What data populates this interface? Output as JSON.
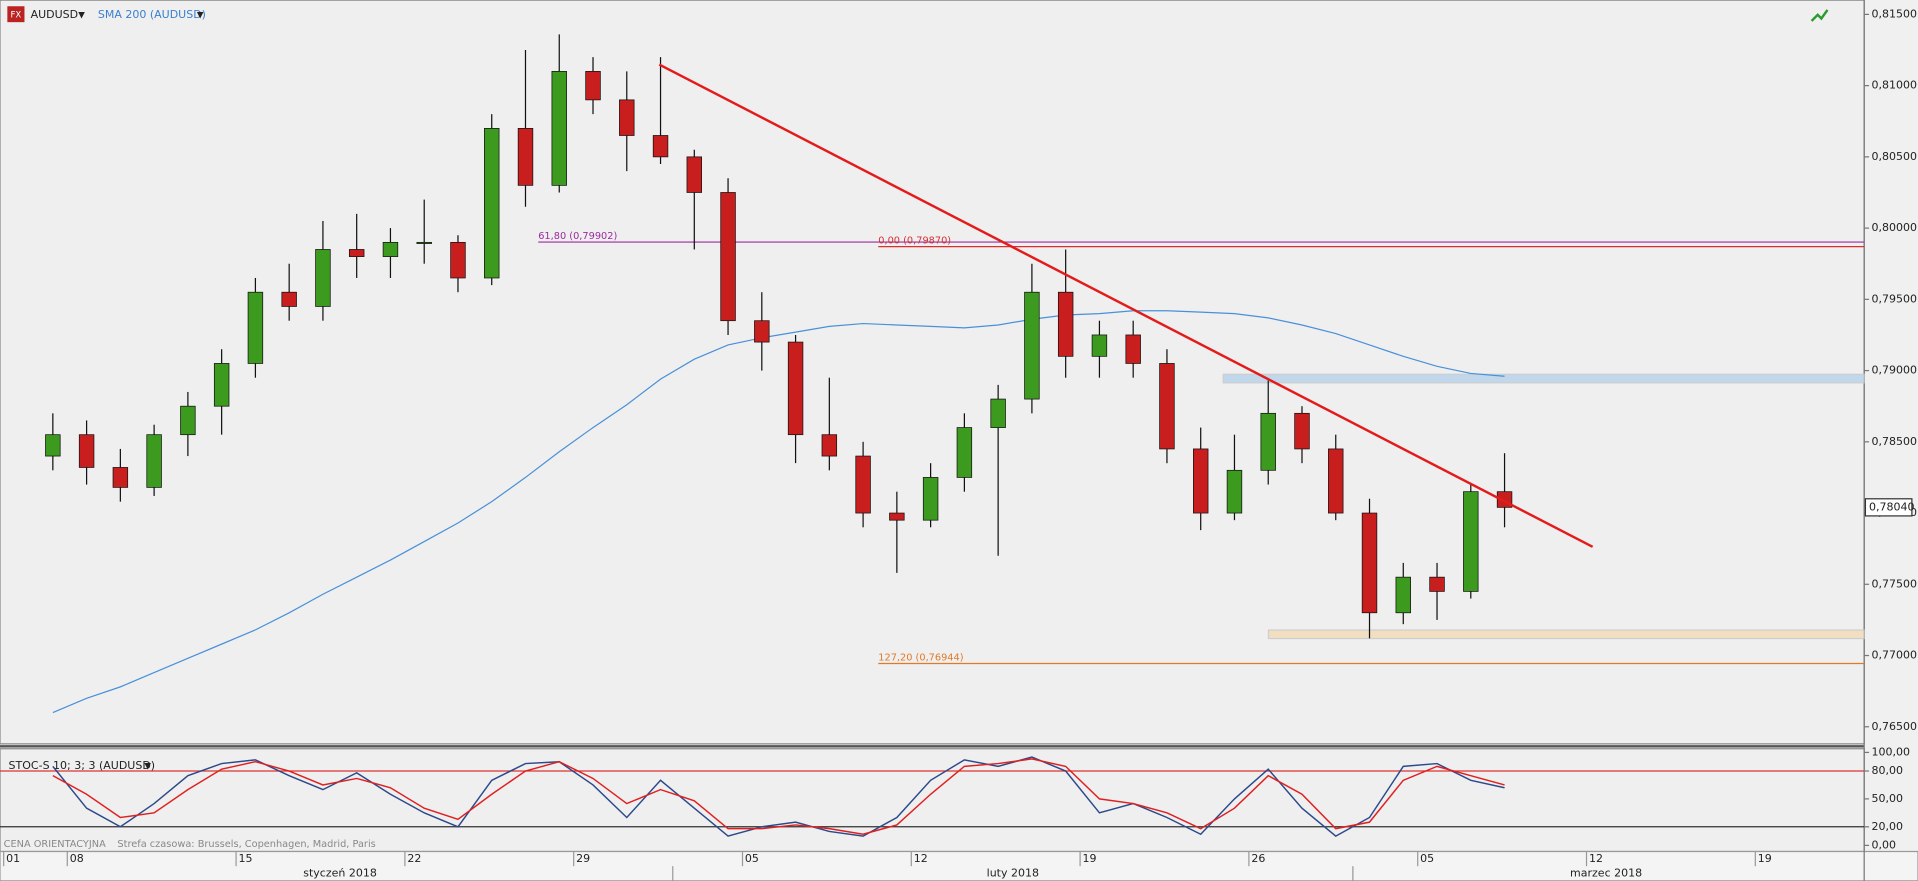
{
  "header": {
    "symbol": "AUDUSD",
    "indicator": "SMA 200 (AUDUSD)",
    "oscillator": "STOC-S 10; 3; 3 (AUDUSD)",
    "note": "CENA ORIENTACYJNA",
    "timezone": "Strefa czasowa: Brussels, Copenhagen, Madrid, Paris"
  },
  "chart_data": [
    {
      "type": "candlestick",
      "open": [
        0.784,
        0.7855,
        0.7832,
        0.7818,
        0.7855,
        0.7875,
        0.7905,
        0.7955,
        0.7945,
        0.7985,
        0.798,
        0.799,
        0.799,
        0.7965,
        0.807,
        0.803,
        0.811,
        0.809,
        0.8065,
        0.805,
        0.8025,
        0.7935,
        0.792,
        0.7855,
        0.784,
        0.78,
        0.7795,
        0.7825,
        0.786,
        0.788,
        0.7955,
        0.791,
        0.7925,
        0.7905,
        0.7845,
        0.78,
        0.783,
        0.787,
        0.7845,
        0.78,
        0.773,
        0.7755,
        0.7745,
        0.7815
      ],
      "high": [
        0.787,
        0.7865,
        0.7845,
        0.7862,
        0.7885,
        0.7915,
        0.7965,
        0.7975,
        0.8005,
        0.801,
        0.8,
        0.802,
        0.7995,
        0.808,
        0.8125,
        0.8136,
        0.812,
        0.811,
        0.812,
        0.8055,
        0.8035,
        0.7955,
        0.7925,
        0.7895,
        0.785,
        0.7815,
        0.7835,
        0.787,
        0.789,
        0.7975,
        0.7985,
        0.7935,
        0.7935,
        0.7915,
        0.786,
        0.7855,
        0.7893,
        0.7875,
        0.7855,
        0.781,
        0.7765,
        0.7765,
        0.782,
        0.7842
      ],
      "low": [
        0.783,
        0.782,
        0.7808,
        0.7812,
        0.784,
        0.7855,
        0.7895,
        0.7935,
        0.7935,
        0.7965,
        0.7965,
        0.7975,
        0.7955,
        0.796,
        0.8015,
        0.8025,
        0.808,
        0.804,
        0.8045,
        0.7985,
        0.7925,
        0.79,
        0.7835,
        0.783,
        0.779,
        0.7758,
        0.779,
        0.7815,
        0.777,
        0.787,
        0.7895,
        0.7895,
        0.7895,
        0.7835,
        0.7788,
        0.7795,
        0.782,
        0.7835,
        0.7795,
        0.7712,
        0.7722,
        0.7725,
        0.774,
        0.779
      ],
      "close": [
        0.7855,
        0.7832,
        0.7818,
        0.7855,
        0.7875,
        0.7905,
        0.7955,
        0.7945,
        0.7985,
        0.798,
        0.799,
        0.799,
        0.7965,
        0.807,
        0.803,
        0.811,
        0.809,
        0.8065,
        0.805,
        0.8025,
        0.7935,
        0.792,
        0.7855,
        0.784,
        0.78,
        0.7795,
        0.7825,
        0.786,
        0.788,
        0.7955,
        0.791,
        0.7925,
        0.7905,
        0.7845,
        0.78,
        0.783,
        0.787,
        0.7845,
        0.78,
        0.773,
        0.7755,
        0.7745,
        0.7815,
        0.7804
      ],
      "up_color": "#3c9a1f",
      "down_color": "#c81e1e",
      "sma": {
        "color": "#4a90d9",
        "values": [
          0.766,
          0.767,
          0.7678,
          0.7688,
          0.7698,
          0.7708,
          0.7718,
          0.773,
          0.7743,
          0.7755,
          0.7767,
          0.778,
          0.7793,
          0.7808,
          0.7825,
          0.7843,
          0.786,
          0.7876,
          0.7894,
          0.7908,
          0.7918,
          0.7923,
          0.7927,
          0.7931,
          0.7933,
          0.7932,
          0.7931,
          0.793,
          0.7932,
          0.7936,
          0.7939,
          0.794,
          0.7942,
          0.7942,
          0.7941,
          0.794,
          0.7937,
          0.7932,
          0.7926,
          0.7918,
          0.791,
          0.7903,
          0.7898,
          0.7896
        ]
      },
      "levels": [
        {
          "label": "61,80 (0,79902)",
          "value": 0.79902,
          "color": "#9c2aa0"
        },
        {
          "label": "0,00 (0,79870)",
          "value": 0.7987,
          "color": "#d63030"
        },
        {
          "label": "127,20 (0,76944)",
          "value": 0.76944,
          "color": "#e07a2a"
        }
      ],
      "zones": [
        {
          "values": [
            0.78974,
            0.78914
          ],
          "color": "#b8d3ec"
        },
        {
          "values": [
            0.77179,
            0.77119
          ],
          "color": "#f3dcb8"
        }
      ],
      "trendline": {
        "values": [
          0.81148,
          0.77763
        ],
        "color": "#e31b1b"
      },
      "last_price": {
        "value": 0.7804,
        "label": "0,78040"
      },
      "ylim": [
        0.7638,
        0.816
      ],
      "yticks": [
        {
          "value": 0.815,
          "label": "0,81500"
        },
        {
          "value": 0.81,
          "label": "0,81000"
        },
        {
          "value": 0.805,
          "label": "0,80500"
        },
        {
          "value": 0.8,
          "label": "0,80000"
        },
        {
          "value": 0.795,
          "label": "0,79500"
        },
        {
          "value": 0.79,
          "label": "0,79000"
        },
        {
          "value": 0.785,
          "label": "0,78500"
        },
        {
          "value": 0.78,
          "label": "0,78000"
        },
        {
          "value": 0.775,
          "label": "0,77500"
        },
        {
          "value": 0.77,
          "label": "0,77000"
        },
        {
          "value": 0.765,
          "label": "0,76500"
        }
      ],
      "xticks": [
        "01",
        "08",
        "15",
        "22",
        "29",
        "05",
        "12",
        "19",
        "26",
        "05",
        "12",
        "19"
      ],
      "months": [
        "styczeń 2018",
        "luty 2018",
        "marzec 2018"
      ]
    },
    {
      "type": "line",
      "series": [
        {
          "name": "K",
          "color": "#2c4a8a",
          "values": [
            85,
            40,
            20,
            45,
            75,
            88,
            92,
            75,
            60,
            78,
            55,
            35,
            20,
            70,
            88,
            90,
            65,
            30,
            70,
            40,
            10,
            20,
            25,
            15,
            10,
            30,
            70,
            92,
            85,
            95,
            80,
            35,
            45,
            30,
            12,
            50,
            82,
            40,
            10,
            30,
            85,
            88,
            70,
            62
          ]
        },
        {
          "name": "D",
          "color": "#e02020",
          "values": [
            75,
            55,
            30,
            35,
            60,
            82,
            90,
            80,
            65,
            72,
            62,
            40,
            28,
            55,
            80,
            90,
            72,
            45,
            60,
            48,
            18,
            18,
            22,
            18,
            12,
            22,
            55,
            85,
            88,
            93,
            85,
            50,
            45,
            35,
            18,
            40,
            75,
            55,
            18,
            25,
            70,
            85,
            75,
            65
          ]
        }
      ],
      "ylim": [
        0,
        100
      ],
      "yticks": [
        {
          "value": 100,
          "label": "100,00"
        },
        {
          "value": 80,
          "label": "80,00"
        },
        {
          "value": 50,
          "label": "50,00"
        },
        {
          "value": 20,
          "label": "20,00"
        },
        {
          "value": 0,
          "label": "0,00"
        }
      ],
      "bands": [
        80,
        20
      ]
    }
  ]
}
